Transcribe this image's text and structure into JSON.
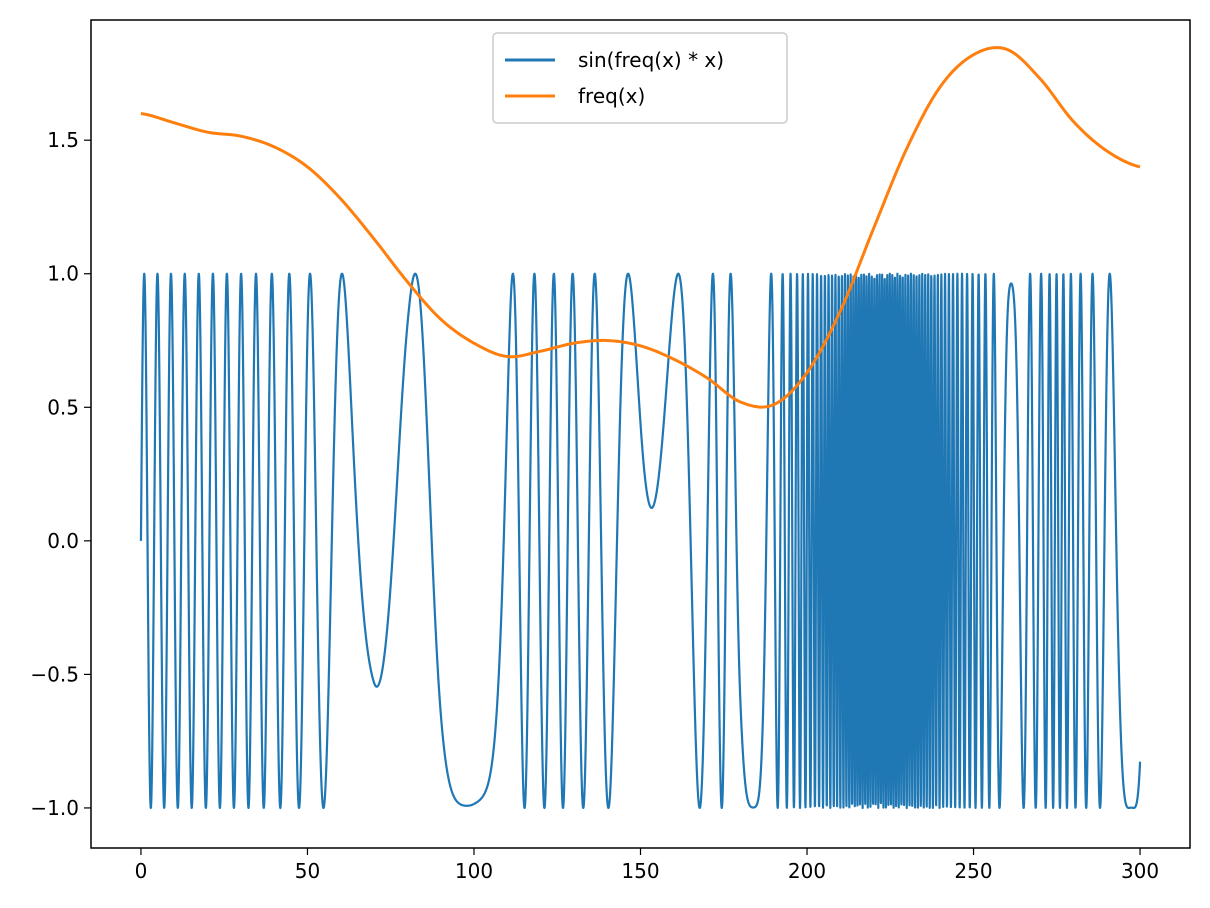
{
  "chart_data": {
    "type": "line",
    "title": "",
    "xlabel": "",
    "ylabel": "",
    "xlim": [
      -15,
      315
    ],
    "ylim": [
      -1.15,
      1.95
    ],
    "grid": false,
    "legend_placement": "upper-center",
    "x_ticks": [
      0,
      50,
      100,
      150,
      200,
      250,
      300
    ],
    "x_tick_labels": [
      "0",
      "50",
      "100",
      "150",
      "200",
      "250",
      "300"
    ],
    "y_ticks": [
      -1.0,
      -0.5,
      0.0,
      0.5,
      1.0,
      1.5
    ],
    "y_tick_labels": [
      "−1.0",
      "−0.5",
      "0.0",
      "0.5",
      "1.0",
      "1.5"
    ],
    "series": [
      {
        "name": "sin(freq(x) * x)",
        "color": "#1f77b4",
        "x_range": [
          0,
          300
        ],
        "generated_from": "sin(freq(x) * x)"
      },
      {
        "name": "freq(x)",
        "color": "#ff7f0e",
        "x": [
          0,
          10,
          20,
          30,
          40,
          50,
          60,
          70,
          80,
          90,
          100,
          110,
          120,
          130,
          140,
          150,
          160,
          170,
          180,
          190,
          200,
          210,
          220,
          230,
          240,
          250,
          260,
          270,
          280,
          290,
          300
        ],
        "y": [
          1.6,
          1.565,
          1.53,
          1.515,
          1.475,
          1.4,
          1.28,
          1.13,
          0.97,
          0.83,
          0.74,
          0.69,
          0.71,
          0.74,
          0.75,
          0.73,
          0.68,
          0.61,
          0.52,
          0.51,
          0.63,
          0.86,
          1.17,
          1.47,
          1.7,
          1.82,
          1.84,
          1.73,
          1.57,
          1.46,
          1.4
        ]
      }
    ]
  }
}
